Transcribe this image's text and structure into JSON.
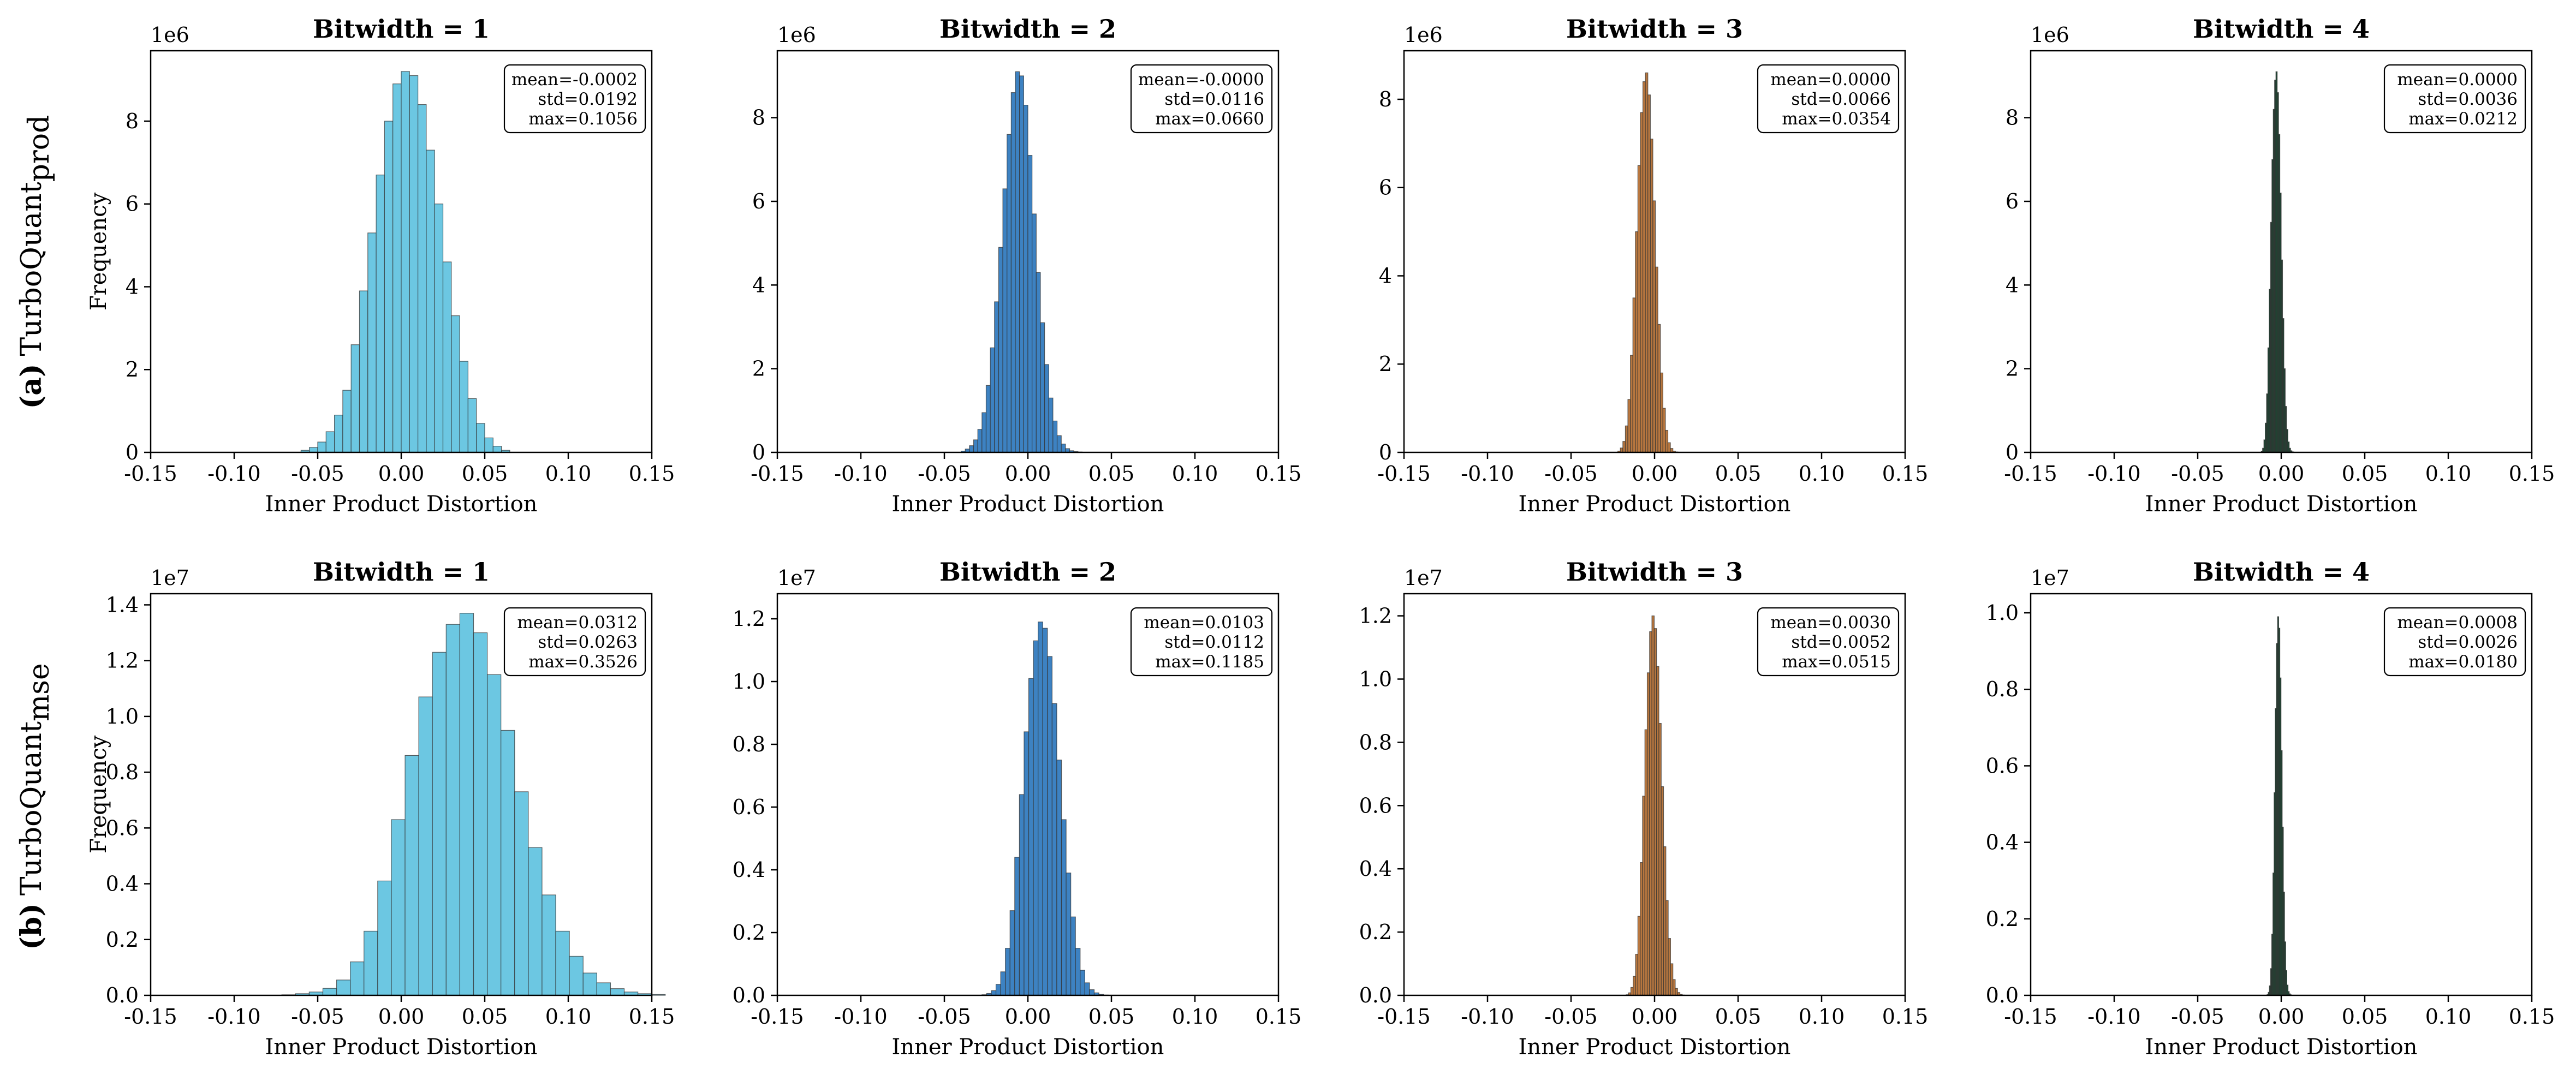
{
  "row_labels": [
    {
      "tag": "(a)",
      "name": "TurboQuant",
      "subscript": "prod"
    },
    {
      "tag": "(b)",
      "name": "TurboQuant",
      "subscript": "mse"
    }
  ],
  "colors": {
    "b1": "#6cc7e2",
    "b2": "#3d82c2",
    "b3": "#b8773f",
    "b4": "#1f4332",
    "edge": "#333333"
  },
  "chart_data": [
    {
      "type": "bar",
      "row": 0,
      "col": 0,
      "title": "Bitwidth = 1",
      "xlabel": "Inner Product Distortion",
      "ylabel": "Frequency",
      "offset_text": "1e6",
      "xlim": [
        -0.15,
        0.15
      ],
      "ylim": [
        0,
        9.7
      ],
      "xticks": [
        "-0.15",
        "-0.10",
        "-0.05",
        "0.00",
        "0.05",
        "0.10",
        "0.15"
      ],
      "yticks": [
        "0",
        "2",
        "4",
        "6",
        "8"
      ],
      "stats": [
        "mean=-0.0002",
        "std=0.0192",
        "max=0.1056"
      ],
      "color": "b1",
      "bin_start": -0.06,
      "bin_width": 0.005,
      "values": [
        0.05,
        0.12,
        0.25,
        0.5,
        0.9,
        1.5,
        2.6,
        3.9,
        5.3,
        6.7,
        8.0,
        8.9,
        9.2,
        9.1,
        8.4,
        7.3,
        6.0,
        4.6,
        3.3,
        2.2,
        1.3,
        0.7,
        0.35,
        0.15,
        0.05
      ]
    },
    {
      "type": "bar",
      "row": 0,
      "col": 1,
      "title": "Bitwidth = 2",
      "xlabel": "Inner Product Distortion",
      "ylabel": "",
      "offset_text": "1e6",
      "xlim": [
        -0.15,
        0.15
      ],
      "ylim": [
        0,
        9.6
      ],
      "xticks": [
        "-0.15",
        "-0.10",
        "-0.05",
        "0.00",
        "0.05",
        "0.10",
        "0.15"
      ],
      "yticks": [
        "0",
        "2",
        "4",
        "6",
        "8"
      ],
      "stats": [
        "mean=-0.0000",
        "std=0.0116",
        "max=0.0660"
      ],
      "color": "b2",
      "bin_start": -0.04,
      "bin_width": 0.0025,
      "values": [
        0.03,
        0.08,
        0.16,
        0.3,
        0.55,
        0.95,
        1.6,
        2.5,
        3.6,
        4.9,
        6.3,
        7.6,
        8.6,
        9.1,
        9.0,
        8.3,
        7.1,
        5.7,
        4.3,
        3.1,
        2.1,
        1.3,
        0.75,
        0.4,
        0.2,
        0.09,
        0.04,
        0.02,
        0.01,
        0.005,
        0.002,
        0.001
      ]
    },
    {
      "type": "bar",
      "row": 0,
      "col": 2,
      "title": "Bitwidth = 3",
      "xlabel": "Inner Product Distortion",
      "ylabel": "",
      "offset_text": "1e6",
      "xlim": [
        -0.15,
        0.15
      ],
      "ylim": [
        0,
        9.1
      ],
      "xticks": [
        "-0.15",
        "-0.10",
        "-0.05",
        "0.00",
        "0.05",
        "0.10",
        "0.15"
      ],
      "yticks": [
        "0",
        "2",
        "4",
        "6",
        "8"
      ],
      "stats": [
        "mean=0.0000",
        "std=0.0066",
        "max=0.0354"
      ],
      "color": "b3",
      "bin_start": -0.022,
      "bin_width": 0.0015,
      "values": [
        0.03,
        0.1,
        0.25,
        0.6,
        1.2,
        2.2,
        3.5,
        5.0,
        6.5,
        7.7,
        8.4,
        8.6,
        8.1,
        7.1,
        5.7,
        4.2,
        2.9,
        1.8,
        1.0,
        0.5,
        0.22,
        0.09,
        0.03,
        0.01,
        0.005,
        0.002,
        0.001,
        0.0005,
        0.0003,
        0.0001
      ]
    },
    {
      "type": "bar",
      "row": 0,
      "col": 3,
      "title": "Bitwidth = 4",
      "xlabel": "Inner Product Distortion",
      "ylabel": "",
      "offset_text": "1e6",
      "xlim": [
        -0.15,
        0.15
      ],
      "ylim": [
        0,
        9.6
      ],
      "xticks": [
        "-0.15",
        "-0.10",
        "-0.05",
        "0.00",
        "0.05",
        "0.10",
        "0.15"
      ],
      "yticks": [
        "0",
        "2",
        "4",
        "6",
        "8"
      ],
      "stats": [
        "mean=0.0000",
        "std=0.0036",
        "max=0.0212"
      ],
      "color": "b4",
      "bin_start": -0.012,
      "bin_width": 0.0008,
      "values": [
        0.03,
        0.1,
        0.3,
        0.7,
        1.4,
        2.5,
        3.9,
        5.5,
        7.0,
        8.2,
        8.9,
        9.1,
        8.6,
        7.6,
        6.2,
        4.6,
        3.2,
        2.0,
        1.1,
        0.55,
        0.25,
        0.1,
        0.04,
        0.015,
        0.006,
        0.003,
        0.0015,
        0.0008,
        0.0004,
        0.0002
      ]
    },
    {
      "type": "bar",
      "row": 1,
      "col": 0,
      "title": "Bitwidth = 1",
      "xlabel": "Inner Product Distortion",
      "ylabel": "Frequency",
      "offset_text": "1e7",
      "xlim": [
        -0.15,
        0.15
      ],
      "ylim": [
        0,
        1.44
      ],
      "xticks": [
        "-0.15",
        "-0.10",
        "-0.05",
        "0.00",
        "0.05",
        "0.10",
        "0.15"
      ],
      "yticks": [
        "0.0",
        "0.2",
        "0.4",
        "0.6",
        "0.8",
        "1.0",
        "1.2",
        "1.4"
      ],
      "stats": [
        "mean=0.0312",
        "std=0.0263",
        "max=0.3526"
      ],
      "color": "b1",
      "bin_start": -0.0715,
      "bin_width": 0.0082,
      "values": [
        0.002,
        0.006,
        0.012,
        0.025,
        0.055,
        0.12,
        0.23,
        0.41,
        0.63,
        0.86,
        1.07,
        1.23,
        1.33,
        1.37,
        1.3,
        1.15,
        0.95,
        0.73,
        0.53,
        0.36,
        0.23,
        0.14,
        0.08,
        0.045,
        0.024,
        0.012,
        0.006,
        0.003
      ]
    },
    {
      "type": "bar",
      "row": 1,
      "col": 1,
      "title": "Bitwidth = 2",
      "xlabel": "Inner Product Distortion",
      "ylabel": "",
      "offset_text": "1e7",
      "xlim": [
        -0.15,
        0.15
      ],
      "ylim": [
        0,
        1.28
      ],
      "xticks": [
        "-0.15",
        "-0.10",
        "-0.05",
        "0.00",
        "0.05",
        "0.10",
        "0.15"
      ],
      "yticks": [
        "0.0",
        "0.2",
        "0.4",
        "0.6",
        "0.8",
        "1.0",
        "1.2"
      ],
      "stats": [
        "mean=0.0103",
        "std=0.0112",
        "max=0.1185"
      ],
      "color": "b2",
      "bin_start": -0.0275,
      "bin_width": 0.0028,
      "values": [
        0.002,
        0.006,
        0.015,
        0.035,
        0.075,
        0.15,
        0.27,
        0.44,
        0.64,
        0.84,
        1.01,
        1.13,
        1.19,
        1.17,
        1.08,
        0.93,
        0.75,
        0.56,
        0.39,
        0.25,
        0.15,
        0.08,
        0.04,
        0.018,
        0.008,
        0.003,
        0.001
      ]
    },
    {
      "type": "bar",
      "row": 1,
      "col": 2,
      "title": "Bitwidth = 3",
      "xlabel": "Inner Product Distortion",
      "ylabel": "",
      "offset_text": "1e7",
      "xlim": [
        -0.15,
        0.15
      ],
      "ylim": [
        0,
        1.27
      ],
      "xticks": [
        "-0.15",
        "-0.10",
        "-0.05",
        "0.00",
        "0.05",
        "0.10",
        "0.15"
      ],
      "yticks": [
        "0.0",
        "0.2",
        "0.4",
        "0.6",
        "0.8",
        "1.0",
        "1.2"
      ],
      "stats": [
        "mean=0.0030",
        "std=0.0052",
        "max=0.0515"
      ],
      "color": "b3",
      "bin_start": -0.017,
      "bin_width": 0.0014,
      "values": [
        0.002,
        0.008,
        0.025,
        0.06,
        0.13,
        0.25,
        0.42,
        0.63,
        0.84,
        1.02,
        1.15,
        1.2,
        1.16,
        1.04,
        0.86,
        0.66,
        0.47,
        0.3,
        0.18,
        0.1,
        0.05,
        0.022,
        0.009,
        0.003,
        0.001
      ]
    },
    {
      "type": "bar",
      "row": 1,
      "col": 3,
      "title": "Bitwidth = 4",
      "xlabel": "Inner Product Distortion",
      "ylabel": "",
      "offset_text": "1e7",
      "xlim": [
        -0.15,
        0.15
      ],
      "ylim": [
        0,
        1.05
      ],
      "xticks": [
        "-0.15",
        "-0.10",
        "-0.05",
        "0.00",
        "0.05",
        "0.10",
        "0.15"
      ],
      "yticks": [
        "0.0",
        "0.2",
        "0.4",
        "0.6",
        "0.8",
        "1.0"
      ],
      "stats": [
        "mean=0.0008",
        "std=0.0026",
        "max=0.0180"
      ],
      "color": "b4",
      "bin_start": -0.0085,
      "bin_width": 0.0007,
      "values": [
        0.002,
        0.008,
        0.025,
        0.07,
        0.16,
        0.32,
        0.53,
        0.75,
        0.92,
        0.99,
        0.96,
        0.83,
        0.64,
        0.44,
        0.27,
        0.14,
        0.065,
        0.027,
        0.01,
        0.004,
        0.0015,
        0.0005,
        0.0002,
        0.0001
      ]
    }
  ]
}
